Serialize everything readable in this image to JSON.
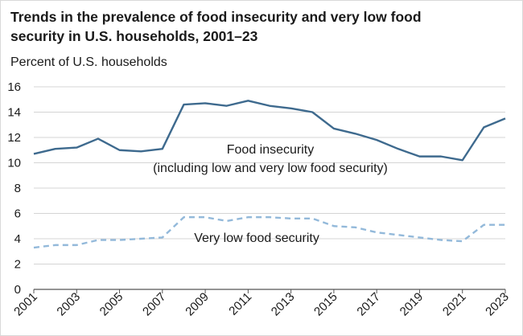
{
  "chart_data": {
    "type": "line",
    "title_lines": [
      "Trends in the prevalence of food insecurity and very low food",
      "security in U.S. households, 2001–23"
    ],
    "ylabel": "Percent of U.S. households",
    "xlabel": "",
    "ylim": [
      0,
      16
    ],
    "yticks": [
      0,
      2,
      4,
      6,
      8,
      10,
      12,
      14,
      16
    ],
    "xlim": [
      2001,
      2023
    ],
    "xticks": [
      "2001",
      "2003",
      "2005",
      "2007",
      "2009",
      "2011",
      "2013",
      "2015",
      "2017",
      "2019",
      "2021",
      "2023"
    ],
    "grid": "horizontal",
    "x": [
      2001,
      2002,
      2003,
      2004,
      2005,
      2006,
      2007,
      2008,
      2009,
      2010,
      2011,
      2012,
      2013,
      2014,
      2015,
      2016,
      2017,
      2018,
      2019,
      2020,
      2021,
      2022,
      2023
    ],
    "series": [
      {
        "color": "#3e6a8e",
        "style": "solid",
        "label_lines": [
          "Food insecurity",
          "(including low and very low food security)"
        ],
        "values": [
          10.7,
          11.1,
          11.2,
          11.9,
          11.0,
          10.9,
          11.1,
          14.6,
          14.7,
          14.5,
          14.9,
          14.5,
          14.3,
          14.0,
          12.7,
          12.3,
          11.8,
          11.1,
          10.5,
          10.5,
          10.2,
          12.8,
          13.5
        ]
      },
      {
        "color": "#93b9da",
        "style": "dashed",
        "label_lines": [
          "Very low food security"
        ],
        "values": [
          3.3,
          3.5,
          3.5,
          3.9,
          3.9,
          4.0,
          4.1,
          5.7,
          5.7,
          5.4,
          5.7,
          5.7,
          5.6,
          5.6,
          5.0,
          4.9,
          4.5,
          4.3,
          4.1,
          3.9,
          3.8,
          5.1,
          5.1
        ]
      }
    ]
  }
}
